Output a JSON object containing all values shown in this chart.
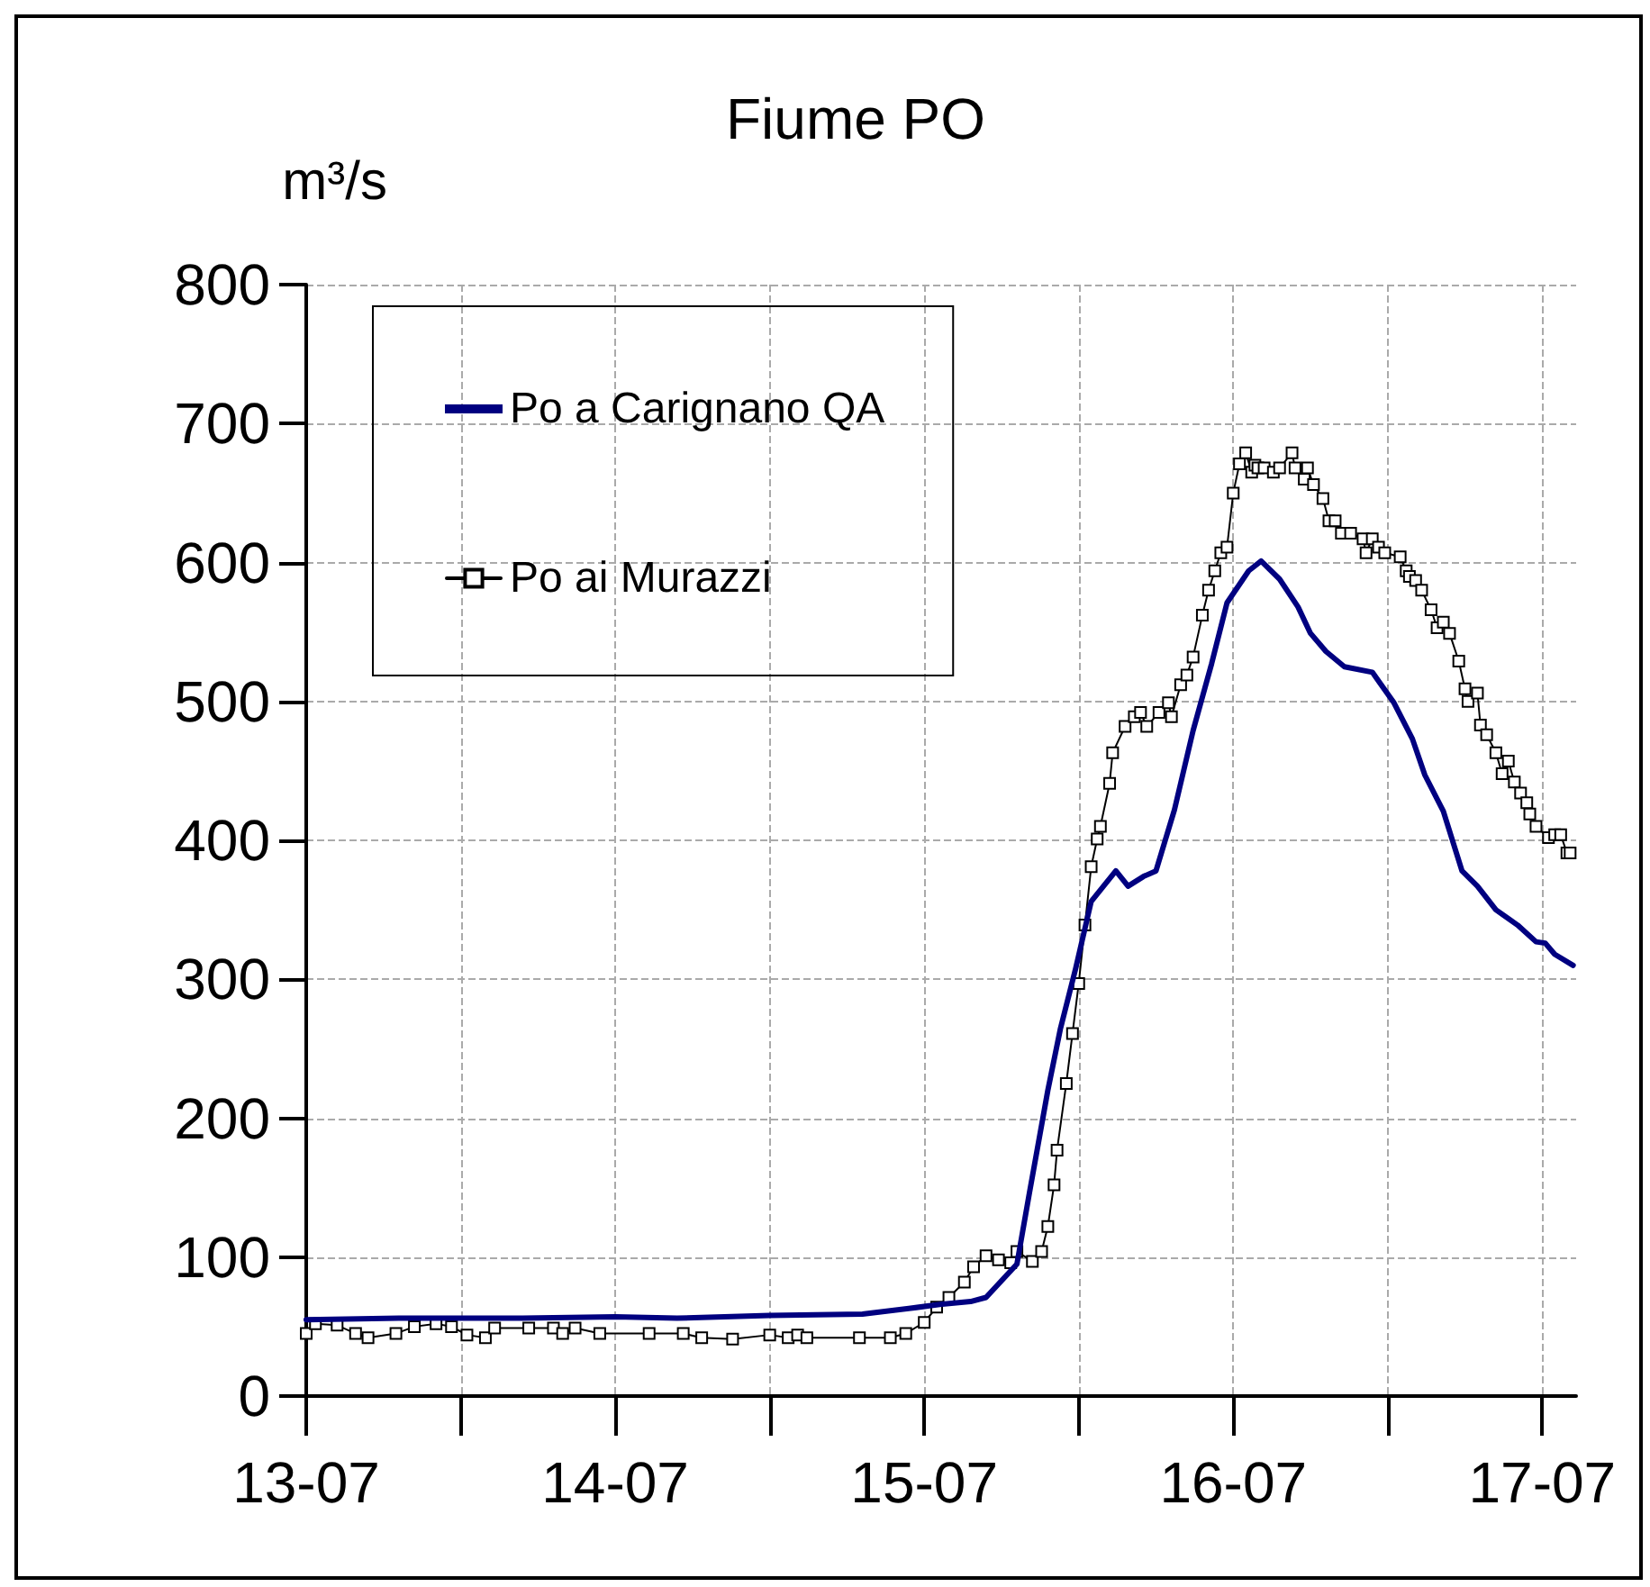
{
  "chart_data": {
    "type": "line",
    "title": "Fiume PO",
    "ylabel": "m³/s",
    "xlim": [
      "--07-13T00:00",
      "--07-17T02:38"
    ],
    "xticks": [
      {
        "value": "--07-13",
        "label": "13-07"
      },
      {
        "value": "--07-13T12:00",
        "label": null
      },
      {
        "value": "--07-14",
        "label": "14-07"
      },
      {
        "value": "--07-14T12:00",
        "label": null
      },
      {
        "value": "--07-15",
        "label": "15-07"
      },
      {
        "value": "--07-15T12:00",
        "label": null
      },
      {
        "value": "--07-16",
        "label": "16-07"
      },
      {
        "value": "--07-16T12:00",
        "label": null
      },
      {
        "value": "--07-17",
        "label": "17-07"
      }
    ],
    "ylim": [
      0,
      800
    ],
    "yticks": [
      0,
      100,
      200,
      300,
      400,
      500,
      600,
      700,
      800
    ],
    "grid": true,
    "legend": "top left",
    "series": [
      {
        "name": "Po a Carignano QA",
        "color": "#000080",
        "marker": "none",
        "x": [
          "--07-13T00:00",
          "--07-13T07:12",
          "--07-13T16:48",
          "--07-14T00:00",
          "--07-14T04:48",
          "--07-14T12:00",
          "--07-14T19:12",
          "--07-14T22:48",
          "--07-15T01:12",
          "--07-15T03:36",
          "--07-15T04:48",
          "--07-15T07:12",
          "--07-15T08:10",
          "--07-15T09:36",
          "--07-15T10:34",
          "--07-15T11:46",
          "--07-15T12:58",
          "--07-15T14:53",
          "--07-15T15:50",
          "--07-15T17:02",
          "--07-15T18:00",
          "--07-15T19:26",
          "--07-15T20:53",
          "--07-15T22:19",
          "--07-15T23:31",
          "--07-16T01:12",
          "--07-16T02:10",
          "--07-16T03:36",
          "--07-16T05:02",
          "--07-16T06:00",
          "--07-16T07:12",
          "--07-16T08:38",
          "--07-16T10:48",
          "--07-16T12:29",
          "--07-16T13:55",
          "--07-16T14:53",
          "--07-16T16:19",
          "--07-16T17:46",
          "--07-16T18:58",
          "--07-16T20:24",
          "--07-16T22:05",
          "--07-16T23:31",
          "--07-17T00:14",
          "--07-17T00:58",
          "--07-17T02:24"
        ],
        "values": [
          55,
          56,
          56,
          57,
          56,
          58,
          59,
          63,
          66,
          68,
          71,
          95,
          146,
          220,
          264,
          308,
          356,
          378,
          367,
          374,
          378,
          422,
          479,
          527,
          571,
          594,
          601,
          588,
          568,
          549,
          536,
          525,
          521,
          499,
          473,
          447,
          421,
          378,
          367,
          350,
          339,
          327,
          326,
          318,
          310
        ]
      },
      {
        "name": "Po ai Murazzi",
        "color": "#000000",
        "marker": "square",
        "x": [
          "--07-13T00:00",
          "--07-13T00:43",
          "--07-13T02:24",
          "--07-13T03:50",
          "--07-13T04:48",
          "--07-13T06:58",
          "--07-13T08:24",
          "--07-13T10:05",
          "--07-13T11:17",
          "--07-13T12:29",
          "--07-13T13:55",
          "--07-13T14:38",
          "--07-13T17:17",
          "--07-13T19:12",
          "--07-13T19:55",
          "--07-13T20:53",
          "--07-13T22:48",
          "--07-14T02:38",
          "--07-14T05:17",
          "--07-14T06:43",
          "--07-14T09:07",
          "--07-14T12:00",
          "--07-14T13:26",
          "--07-14T14:10",
          "--07-14T14:53",
          "--07-14T18:58",
          "--07-14T21:22",
          "--07-14T22:34",
          "--07-15T00:00",
          "--07-15T00:58",
          "--07-15T01:55",
          "--07-15T03:07",
          "--07-15T03:50",
          "--07-15T04:48",
          "--07-15T05:46",
          "--07-15T06:43",
          "--07-15T07:12",
          "--07-15T08:24",
          "--07-15T09:07",
          "--07-15T09:36",
          "--07-15T10:05",
          "--07-15T10:19",
          "--07-15T11:02",
          "--07-15T11:31",
          "--07-15T12:00",
          "--07-15T12:29",
          "--07-15T12:58",
          "--07-15T13:26",
          "--07-15T13:41",
          "--07-15T14:24",
          "--07-15T14:38",
          "--07-15T15:36",
          "--07-15T16:19",
          "--07-15T16:48",
          "--07-15T17:17",
          "--07-15T18:14",
          "--07-15T18:58",
          "--07-15T19:12",
          "--07-15T19:55",
          "--07-15T20:24",
          "--07-15T20:53",
          "--07-15T21:36",
          "--07-15T22:05",
          "--07-15T22:34",
          "--07-15T23:02",
          "--07-15T23:31",
          "--07-16T00:00",
          "--07-16T00:29",
          "--07-16T00:58",
          "--07-16T01:26",
          "--07-16T01:41",
          "--07-16T01:55",
          "--07-16T02:24",
          "--07-16T03:07",
          "--07-16T03:36",
          "--07-16T04:34",
          "--07-16T04:48",
          "--07-16T05:31",
          "--07-16T05:46",
          "--07-16T06:14",
          "--07-16T06:58",
          "--07-16T07:26",
          "--07-16T07:55",
          "--07-16T08:24",
          "--07-16T09:07",
          "--07-16T10:05",
          "--07-16T10:19",
          "--07-16T10:48",
          "--07-16T11:17",
          "--07-16T11:46",
          "--07-16T12:58",
          "--07-16T13:26",
          "--07-16T13:41",
          "--07-16T14:10",
          "--07-16T14:38",
          "--07-16T15:22",
          "--07-16T15:50",
          "--07-16T16:19",
          "--07-16T16:48",
          "--07-16T17:31",
          "--07-16T18:00",
          "--07-16T18:14",
          "--07-16T18:58",
          "--07-16T19:12",
          "--07-16T19:41",
          "--07-16T20:24",
          "--07-16T20:53",
          "--07-16T21:22",
          "--07-16T21:50",
          "--07-16T22:19",
          "--07-16T22:48",
          "--07-16T23:02",
          "--07-16T23:31",
          "--07-17T00:29",
          "--07-17T00:58",
          "--07-17T01:26",
          "--07-17T01:55",
          "--07-17T02:10"
        ],
        "values": [
          45,
          52,
          51,
          45,
          42,
          45,
          50,
          52,
          50,
          44,
          42,
          49,
          49,
          49,
          45,
          49,
          45,
          45,
          45,
          42,
          41,
          44,
          42,
          44,
          42,
          42,
          42,
          45,
          53,
          64,
          71,
          82,
          93,
          101,
          98,
          96,
          104,
          97,
          104,
          122,
          152,
          177,
          225,
          261,
          297,
          339,
          381,
          401,
          410,
          441,
          463,
          482,
          489,
          492,
          482,
          492,
          499,
          489,
          512,
          519,
          532,
          562,
          580,
          594,
          607,
          611,
          650,
          671,
          679,
          665,
          670,
          668,
          668,
          665,
          668,
          679,
          668,
          660,
          668,
          656,
          646,
          630,
          630,
          621,
          621,
          617,
          607,
          617,
          611,
          607,
          604,
          594,
          590,
          587,
          580,
          566,
          553,
          557,
          549,
          529,
          509,
          500,
          506,
          483,
          476,
          463,
          448,
          457,
          442,
          434,
          427,
          419,
          410,
          402,
          404,
          404,
          391,
          391
        ]
      }
    ]
  }
}
